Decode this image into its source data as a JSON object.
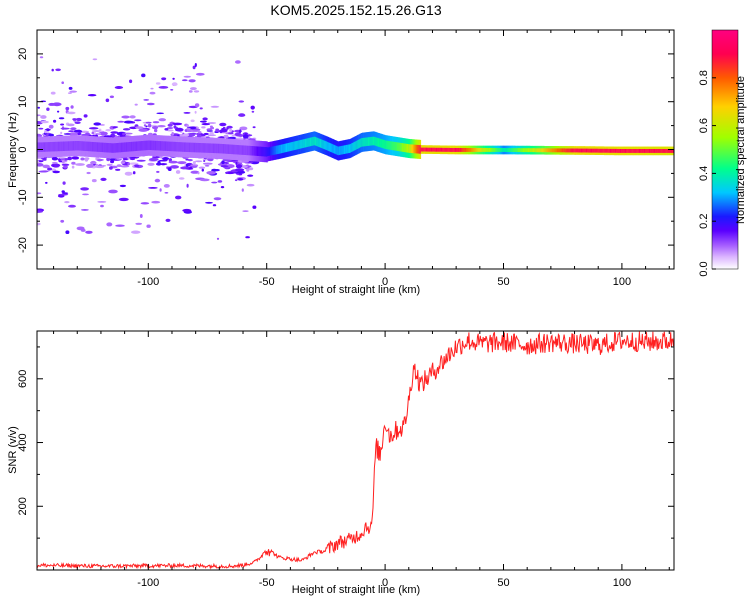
{
  "title": "KOM5.2025.152.15.26.G13",
  "chart_data": [
    {
      "type": "heatmap",
      "xlabel": "Height of straight line (km)",
      "ylabel": "Frequency (Hz)",
      "xlim": [
        -147,
        122
      ],
      "ylim": [
        -25,
        25
      ],
      "x_ticks": [
        -100,
        -50,
        0,
        50,
        100
      ],
      "y_ticks": [
        -20,
        -10,
        0,
        10,
        20
      ],
      "colorbar": {
        "label": "Normalized spectral amplitude",
        "range": [
          0,
          1
        ],
        "ticks": [
          0.0,
          0.2,
          0.4,
          0.6,
          0.8
        ],
        "tick_labels": [
          "0.0",
          "0.2",
          "0.4",
          "0.6",
          "0.8"
        ],
        "colormap": [
          "#ffffff",
          "#dcb6ff",
          "#a45cff",
          "#5a00ff",
          "#1a1aff",
          "#00c8ff",
          "#00ff8c",
          "#a0ff00",
          "#ffd000",
          "#ff5a00",
          "#ff0050",
          "#ff0080"
        ]
      },
      "ridge": {
        "x": [
          -145,
          -130,
          -115,
          -100,
          -85,
          -70,
          -58,
          -50,
          -45,
          -40,
          -35,
          -30,
          -25,
          -20,
          -15,
          -10,
          -5,
          0,
          5,
          10,
          15,
          30,
          50,
          80,
          100,
          122
        ],
        "y": [
          0.5,
          0.8,
          0.3,
          0.9,
          0.5,
          0.2,
          -0.2,
          -0.5,
          0.0,
          0.6,
          1.2,
          1.8,
          0.8,
          -0.3,
          0.2,
          1.5,
          1.8,
          1.0,
          0.6,
          0.2,
          0.0,
          -0.1,
          -0.1,
          -0.2,
          -0.3,
          -0.3
        ],
        "amplitude": [
          0.12,
          0.12,
          0.13,
          0.13,
          0.12,
          0.12,
          0.12,
          0.2,
          0.3,
          0.33,
          0.35,
          0.38,
          0.33,
          0.3,
          0.33,
          0.38,
          0.4,
          0.43,
          0.48,
          0.6,
          0.92,
          0.92,
          0.4,
          0.92,
          0.92,
          0.9
        ]
      }
    },
    {
      "type": "line",
      "xlabel": "Height of straight line (km)",
      "ylabel": "SNR (v/v)",
      "xlim": [
        -147,
        122
      ],
      "ylim": [
        0,
        750
      ],
      "x_ticks": [
        -100,
        -50,
        0,
        50,
        100
      ],
      "y_ticks": [
        200,
        400,
        600
      ],
      "series": [
        {
          "color": "#ff2020",
          "x": [
            -147,
            -120,
            -90,
            -65,
            -60,
            -55,
            -52,
            -50,
            -45,
            -40,
            -35,
            -30,
            -25,
            -20,
            -15,
            -10,
            -8,
            -6,
            -5,
            -4,
            -2,
            0,
            2,
            5,
            8,
            10,
            12,
            15,
            20,
            25,
            30,
            35,
            40,
            50,
            60,
            70,
            80,
            90,
            100,
            110,
            122
          ],
          "y": [
            15,
            12,
            14,
            12,
            15,
            25,
            45,
            70,
            40,
            35,
            30,
            55,
            60,
            85,
            95,
            115,
            140,
            130,
            200,
            390,
            360,
            470,
            420,
            440,
            450,
            530,
            640,
            580,
            620,
            660,
            700,
            720,
            710,
            715,
            705,
            715,
            710,
            705,
            720,
            715,
            720
          ],
          "noise": 25
        }
      ]
    }
  ]
}
